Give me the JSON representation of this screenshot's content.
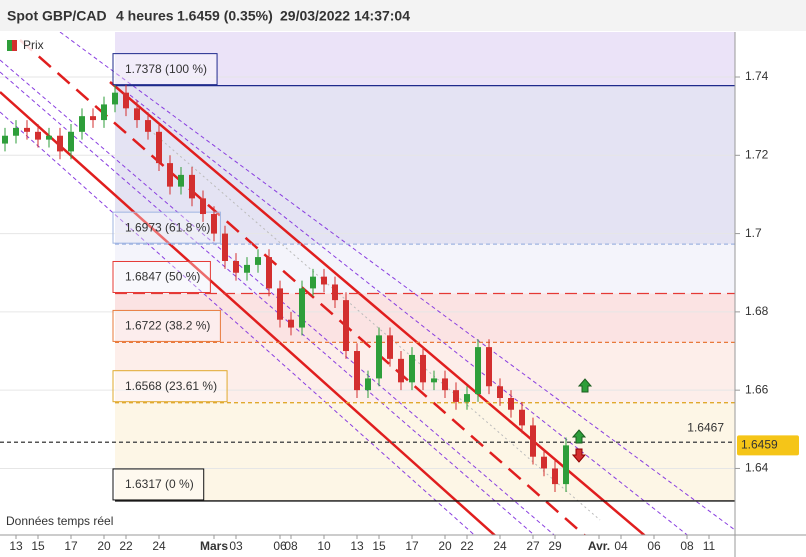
{
  "chart_data": {
    "type": "candlestick",
    "title": "Spot GBP/CAD",
    "timeframe": "4 heures",
    "quote": "1.6459 (0.35%)",
    "timestamp": "29/03/2022 14:37:04",
    "quote_color": "#2e9e3a",
    "footnote": "Données temps réel",
    "categories": [
      null,
      "13",
      null,
      "15",
      null,
      null,
      "17",
      null,
      null,
      "20",
      null,
      "22",
      null,
      null,
      "24",
      null,
      null,
      null,
      null,
      "Mars",
      null,
      "03",
      null,
      null,
      null,
      "06",
      "08",
      null,
      null,
      "10",
      null,
      null,
      "13",
      null,
      "15",
      null,
      null,
      "17",
      null,
      null,
      "20",
      null,
      "22",
      null,
      null,
      "24",
      null,
      null,
      "27",
      null,
      "29",
      null,
      null,
      null,
      "Avr.",
      null,
      "04",
      null,
      null,
      "06",
      null,
      null,
      "08",
      null,
      "11",
      null,
      null
    ],
    "series": [
      {
        "name": "Prix",
        "up_color": "#2e9e3a",
        "down_color": "#d32f2f",
        "open": [
          1.723,
          1.725,
          1.727,
          1.726,
          1.724,
          1.725,
          1.721,
          1.726,
          1.73,
          1.729,
          1.733,
          1.736,
          1.732,
          1.729,
          1.726,
          1.718,
          1.712,
          1.715,
          1.709,
          1.705,
          1.7,
          1.693,
          1.69,
          1.692,
          1.694,
          1.686,
          1.678,
          1.676,
          1.686,
          1.689,
          1.687,
          1.683,
          1.67,
          1.66,
          1.663,
          1.674,
          1.668,
          1.662,
          1.669,
          1.662,
          1.663,
          1.66,
          1.657,
          1.659,
          1.671,
          1.661,
          1.658,
          1.655,
          1.651,
          1.643,
          1.64,
          1.636,
          null,
          null,
          null,
          null,
          null,
          null,
          null,
          null,
          null,
          null,
          null,
          null,
          null,
          null,
          null
        ],
        "high": [
          1.727,
          1.729,
          1.729,
          1.728,
          1.727,
          1.727,
          1.728,
          1.732,
          1.732,
          1.735,
          1.738,
          1.738,
          1.734,
          1.731,
          1.728,
          1.72,
          1.717,
          1.717,
          1.711,
          1.707,
          1.702,
          1.695,
          1.694,
          1.696,
          1.696,
          1.688,
          1.68,
          1.688,
          1.691,
          1.691,
          1.689,
          1.685,
          1.672,
          1.665,
          1.676,
          1.676,
          1.67,
          1.671,
          1.671,
          1.665,
          1.665,
          1.662,
          1.661,
          1.673,
          1.673,
          1.663,
          1.66,
          1.657,
          1.653,
          1.645,
          1.642,
          1.6479,
          null,
          null,
          null,
          null,
          null,
          null,
          null,
          null,
          null,
          null,
          null,
          null,
          null,
          null,
          null
        ],
        "low": [
          1.721,
          1.723,
          1.724,
          1.722,
          1.722,
          1.719,
          1.719,
          1.724,
          1.727,
          1.727,
          1.731,
          1.73,
          1.727,
          1.724,
          1.716,
          1.71,
          1.71,
          1.707,
          1.703,
          1.698,
          1.691,
          1.688,
          1.688,
          1.69,
          1.684,
          1.676,
          1.674,
          1.674,
          1.684,
          1.685,
          1.681,
          1.668,
          1.658,
          1.658,
          1.661,
          1.666,
          1.66,
          1.66,
          1.66,
          1.66,
          1.658,
          1.655,
          1.655,
          1.657,
          1.659,
          1.656,
          1.653,
          1.649,
          1.641,
          1.638,
          1.634,
          1.634,
          null,
          null,
          null,
          null,
          null,
          null,
          null,
          null,
          null,
          null,
          null,
          null,
          null,
          null,
          null
        ],
        "close": [
          1.725,
          1.727,
          1.726,
          1.724,
          1.725,
          1.721,
          1.726,
          1.73,
          1.729,
          1.733,
          1.736,
          1.732,
          1.729,
          1.726,
          1.718,
          1.712,
          1.715,
          1.709,
          1.705,
          1.7,
          1.693,
          1.69,
          1.692,
          1.694,
          1.686,
          1.678,
          1.676,
          1.686,
          1.689,
          1.687,
          1.683,
          1.67,
          1.66,
          1.663,
          1.674,
          1.668,
          1.662,
          1.669,
          1.662,
          1.663,
          1.66,
          1.657,
          1.659,
          1.671,
          1.661,
          1.658,
          1.655,
          1.651,
          1.643,
          1.64,
          1.636,
          1.6459,
          null,
          null,
          null,
          null,
          null,
          null,
          null,
          null,
          null,
          null,
          null,
          null,
          null,
          null,
          null
        ]
      }
    ],
    "ylim": [
      1.623,
      1.7515
    ],
    "yticks": [
      1.64,
      1.66,
      1.68,
      1.7,
      1.72,
      1.74
    ],
    "grid": true,
    "top_band": "#ebe3f8",
    "fib_levels": [
      {
        "label": "1.7378 (100 %)",
        "value": 1.7378,
        "color": "#1f2a8c",
        "style": "solid",
        "band": "#e4e3f3"
      },
      {
        "label": "1.6973 (61.8 %)",
        "value": 1.6973,
        "color": "#9fb4e2",
        "style": "dashed",
        "band": "#f4f4fb"
      },
      {
        "label": "1.6847 (50 %)",
        "value": 1.6847,
        "color": "#e53935",
        "style": "dashed",
        "band": "#fbe3e3"
      },
      {
        "label": "1.6722 (38.2 %)",
        "value": 1.6722,
        "color": "#e8793a",
        "style": "dashed",
        "band": "#fdeeea"
      },
      {
        "label": "1.6568 (23.61 %)",
        "value": 1.6568,
        "color": "#e0a92e",
        "style": "dashed",
        "band": "#fdf6e6"
      },
      {
        "label": "1.6317 (0 %)",
        "value": 1.6317,
        "color": "#111111",
        "style": "solid",
        "band": null
      }
    ],
    "ref_line": {
      "value": 1.6467
    },
    "last_price": 1.6459,
    "last_price_color": "#f5c518"
  }
}
